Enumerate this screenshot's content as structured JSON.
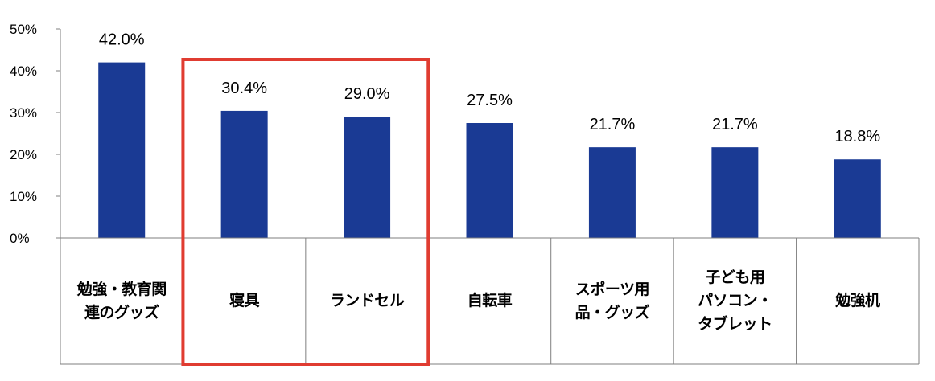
{
  "chart_data": {
    "type": "bar",
    "categories": [
      "勉強・教育関連のグッズ",
      "寝具",
      "ランドセル",
      "自転車",
      "スポーツ用品・グッズ",
      "子ども用パソコン・タブレット",
      "勉強机"
    ],
    "category_lines": [
      [
        "勉強・教育関",
        "連のグッズ"
      ],
      [
        "寝具"
      ],
      [
        "ランドセル"
      ],
      [
        "自転車"
      ],
      [
        "スポーツ用",
        "品・グッズ"
      ],
      [
        "子ども用",
        "パソコン・",
        "タブレット"
      ],
      [
        "勉強机"
      ]
    ],
    "values": [
      42.0,
      30.4,
      29.0,
      27.5,
      21.7,
      21.7,
      18.8
    ],
    "data_labels": [
      "42.0%",
      "30.4%",
      "29.0%",
      "27.5%",
      "21.7%",
      "21.7%",
      "18.8%"
    ],
    "yticks": [
      "50%",
      "40%",
      "30%",
      "20%",
      "10%",
      "0%"
    ],
    "ylim": [
      0,
      50
    ],
    "highlighted_categories": [
      "寝具",
      "ランドセル"
    ],
    "grid": false,
    "legend": "none",
    "colors": {
      "bar": "#1a3a94",
      "highlight_box": "#e03c31",
      "axis": "#7f7f7f"
    }
  }
}
